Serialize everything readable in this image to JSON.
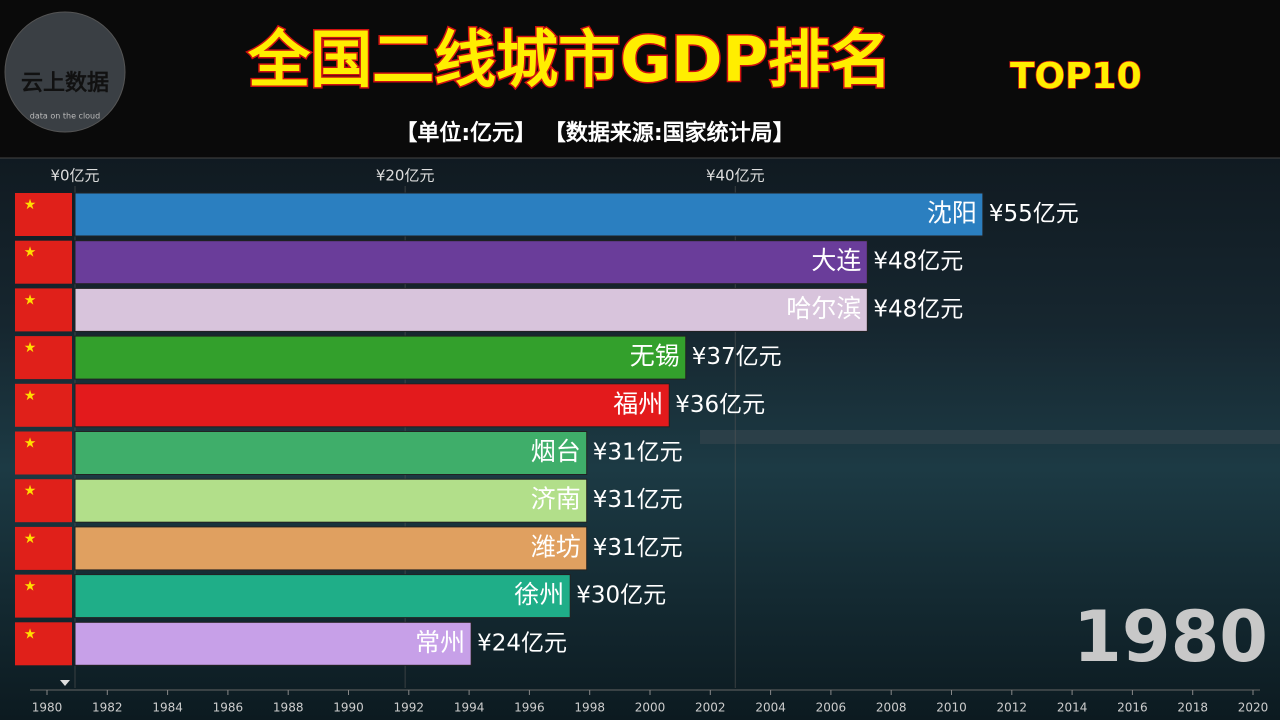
{
  "logo": {
    "text": "云上数据",
    "subtext": "data on the cloud"
  },
  "chart_data": {
    "type": "bar",
    "orientation": "horizontal",
    "title": "全国二线城市GDP排名",
    "subtitle": "TOP10",
    "note": "【单位:亿元】 【数据来源:国家统计局】",
    "categories": [
      "沈阳",
      "大连",
      "哈尔滨",
      "无锡",
      "福州",
      "烟台",
      "济南",
      "潍坊",
      "徐州",
      "常州"
    ],
    "values": [
      55,
      48,
      48,
      37,
      36,
      31,
      31,
      31,
      30,
      24
    ],
    "value_labels": [
      "¥55亿元",
      "¥48亿元",
      "¥48亿元",
      "¥37亿元",
      "¥36亿元",
      "¥31亿元",
      "¥31亿元",
      "¥31亿元",
      "¥30亿元",
      "¥24亿元"
    ],
    "colors": [
      "#2b7fc0",
      "#6a3d9a",
      "#d8c4dc",
      "#33a02c",
      "#e31a1c",
      "#3fae6a",
      "#b2df8a",
      "#e0a060",
      "#1fae88",
      "#c7a0e8"
    ],
    "xlim": [
      0,
      73
    ],
    "xticks": [
      {
        "value": 0,
        "label": "¥0亿元"
      },
      {
        "value": 20,
        "label": "¥20亿元"
      },
      {
        "value": 40,
        "label": "¥40亿元"
      }
    ],
    "grid": true,
    "year": 1980,
    "timeline": {
      "lim": [
        1980,
        2020
      ],
      "ticks": [
        1980,
        1982,
        1984,
        1986,
        1988,
        1990,
        1992,
        1994,
        1996,
        1998,
        2000,
        2002,
        2004,
        2006,
        2008,
        2010,
        2012,
        2014,
        2016,
        2018,
        2020
      ],
      "value": 1980
    }
  }
}
